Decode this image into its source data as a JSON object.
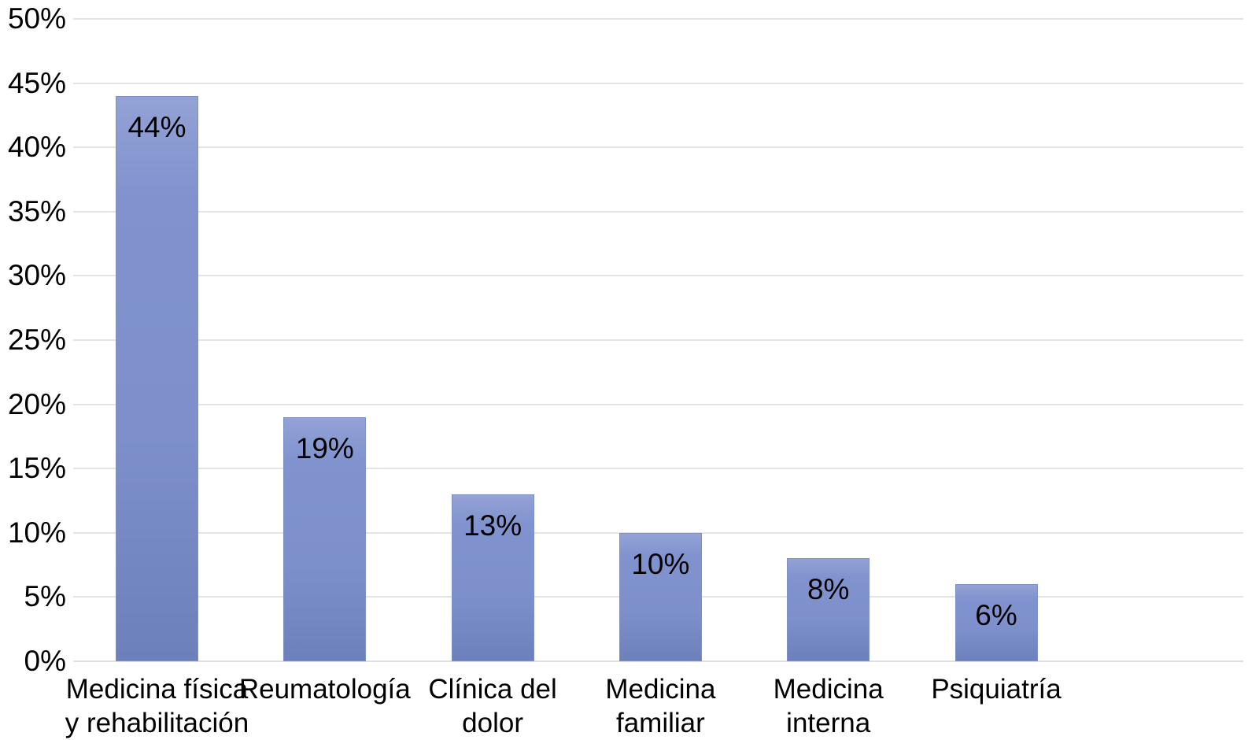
{
  "chart_data": {
    "type": "bar",
    "title": "",
    "xlabel": "",
    "ylabel": "",
    "categories": [
      "Medicina física\ny rehabilitación",
      "Reumatología",
      "Clínica del\ndolor",
      "Medicina\nfamiliar",
      "Medicina\ninterna",
      "Psiquiatría"
    ],
    "values": [
      44,
      19,
      13,
      10,
      8,
      6
    ],
    "data_labels": [
      "44%",
      "19%",
      "13%",
      "10%",
      "8%",
      "6%"
    ],
    "ylim": [
      0,
      50
    ],
    "yticks": [
      0,
      5,
      10,
      15,
      20,
      25,
      30,
      35,
      40,
      45,
      50
    ],
    "ytick_labels": [
      "0%",
      "5%",
      "10%",
      "15%",
      "20%",
      "25%",
      "30%",
      "35%",
      "40%",
      "45%",
      "50%"
    ],
    "grid": true,
    "legend": "none",
    "colors": {
      "bar_top": "#93a2d6",
      "bar_mid": "#8093ce",
      "bar_bottom": "#6c80bb",
      "gridline": "#e2e4e9",
      "text": "#000000",
      "background": "#ffffff"
    }
  }
}
